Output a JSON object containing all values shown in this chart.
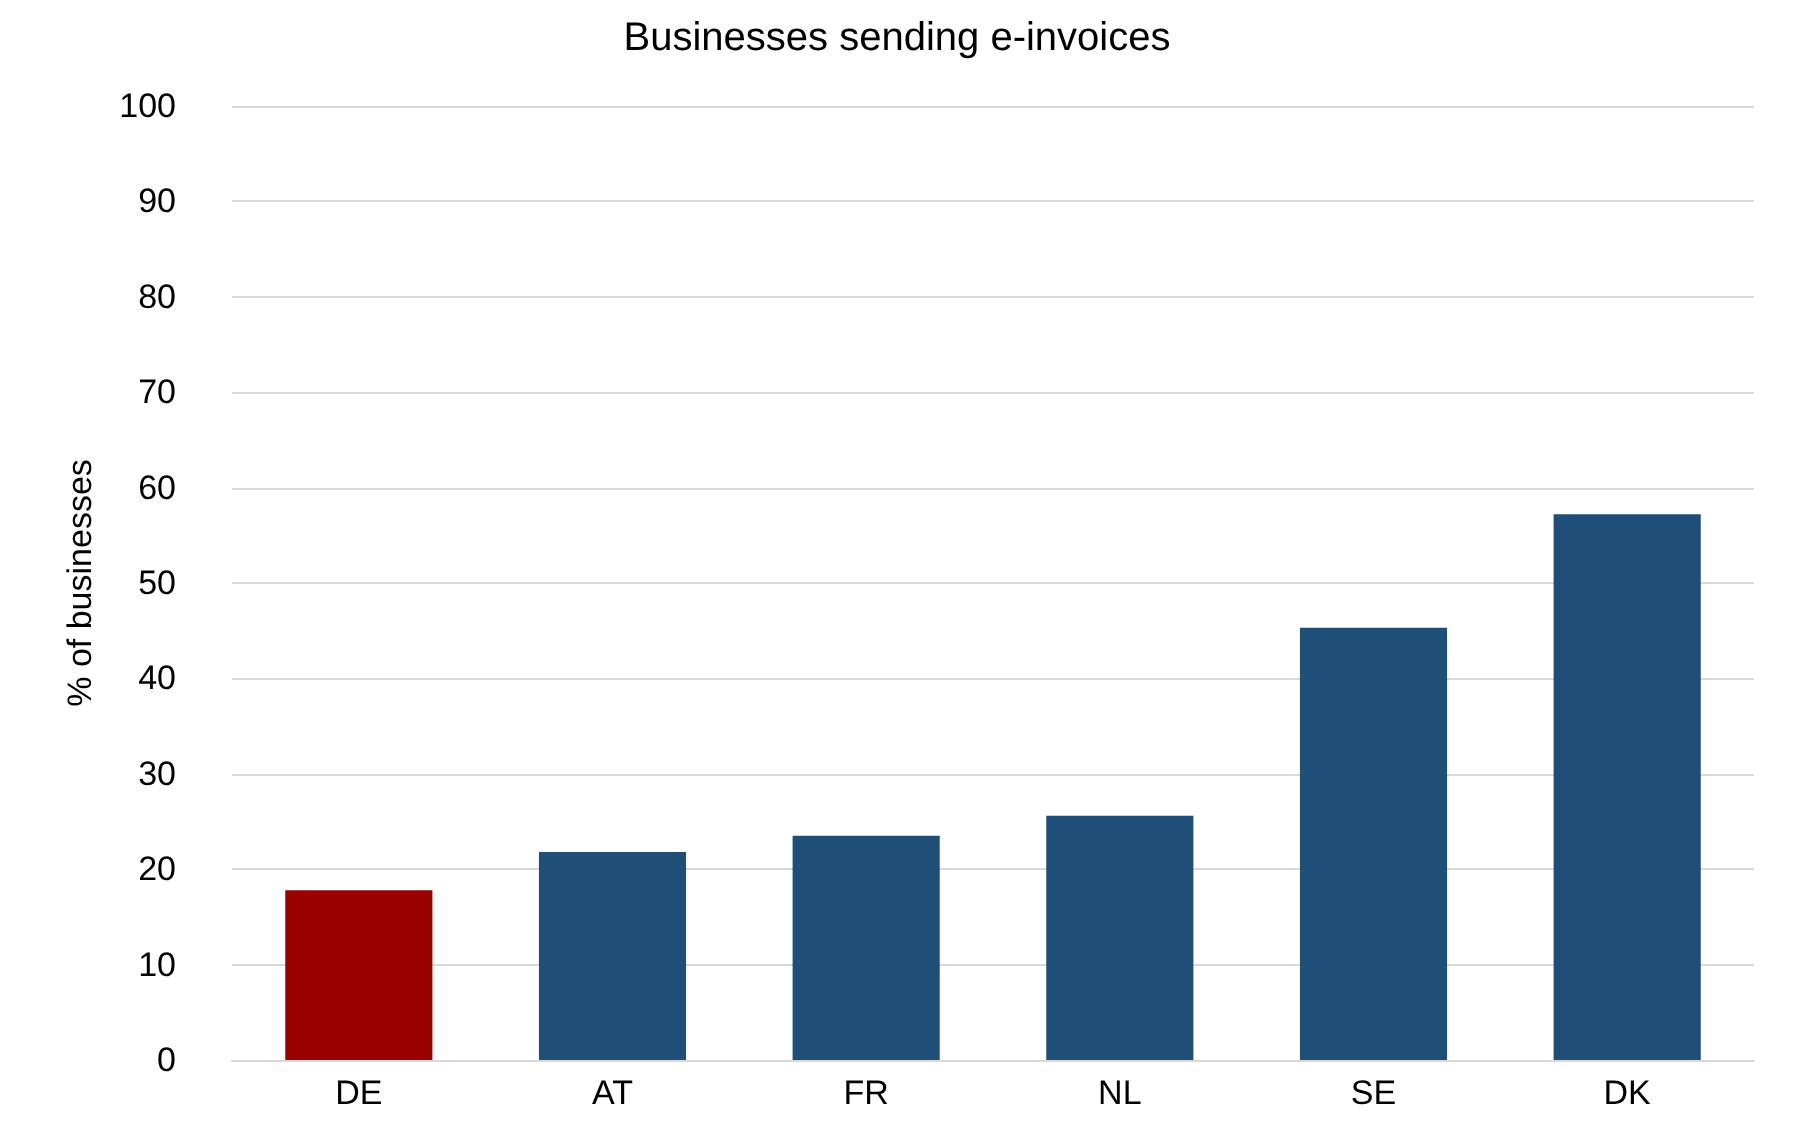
{
  "chart_data": {
    "type": "bar",
    "title": "Businesses sending e-invoices",
    "ylabel": "% of businesses",
    "categories": [
      "DE",
      "AT",
      "FR",
      "NL",
      "SE",
      "DK"
    ],
    "values": [
      17.8,
      21.8,
      23.5,
      25.6,
      45.3,
      57.2
    ],
    "colors": [
      "#990000",
      "#1f4e79",
      "#1f4e79",
      "#1f4e79",
      "#1f4e79",
      "#1f4e79"
    ],
    "ylim": [
      0,
      100
    ],
    "yticks": [
      0,
      10,
      20,
      30,
      40,
      50,
      60,
      70,
      80,
      90,
      100
    ],
    "grid": "y"
  }
}
